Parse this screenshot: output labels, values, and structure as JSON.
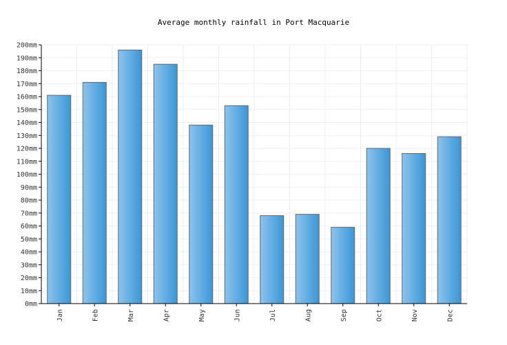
{
  "chart_data": {
    "type": "bar",
    "title": "Average monthly rainfall in Port Macquarie",
    "xlabel": "",
    "ylabel": "",
    "unit": "mm",
    "categories": [
      "Jan",
      "Feb",
      "Mar",
      "Apr",
      "May",
      "Jun",
      "Jul",
      "Aug",
      "Sep",
      "Oct",
      "Nov",
      "Dec"
    ],
    "values": [
      161,
      171,
      196,
      185,
      138,
      153,
      68,
      69,
      59,
      120,
      116,
      129
    ],
    "ylim": [
      0,
      200
    ],
    "ytick_step": 10,
    "grid": true,
    "legend": "none",
    "colors": {
      "bar_light": "#8cc3ee",
      "bar_dark": "#3a97d6",
      "bar_stroke": "#666666",
      "grid": "#eeeeee",
      "axis": "#000000"
    }
  }
}
